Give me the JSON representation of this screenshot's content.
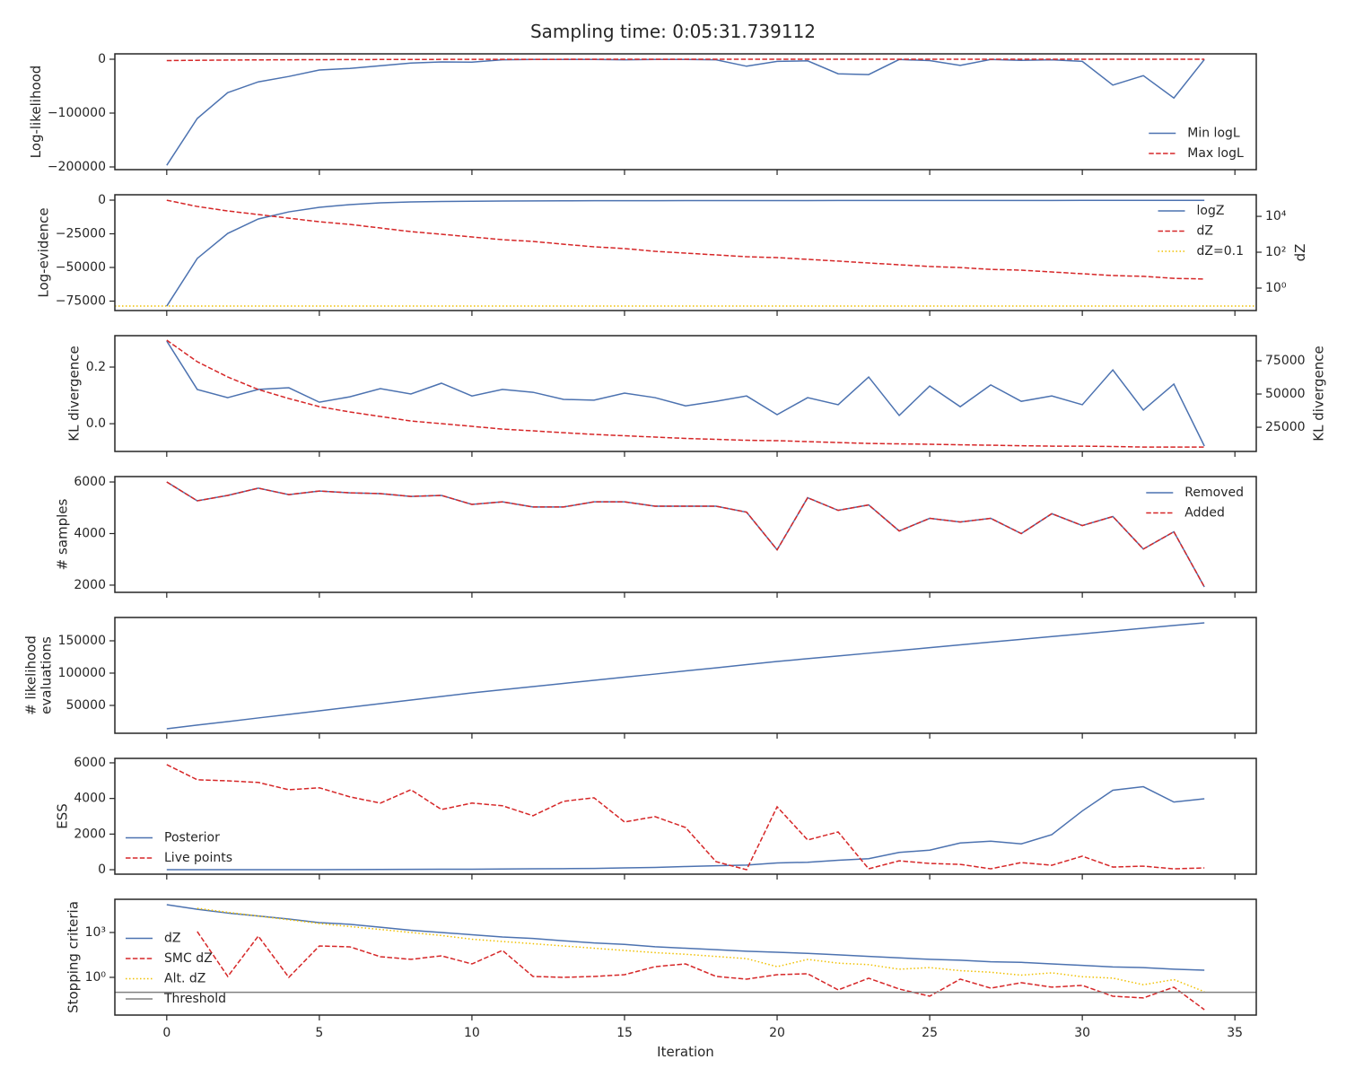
{
  "title": "Sampling time: 0:05:31.739112",
  "chart_data": [
    {
      "type": "line",
      "ylabel": "Log-likelihood",
      "xlim": [
        -1.7,
        35.7
      ],
      "xticks": [
        0,
        5,
        10,
        15,
        20,
        25,
        30,
        35
      ],
      "x": [
        0,
        1,
        2,
        3,
        4,
        5,
        6,
        7,
        8,
        9,
        10,
        11,
        12,
        13,
        14,
        15,
        16,
        17,
        18,
        19,
        20,
        21,
        22,
        23,
        24,
        25,
        26,
        27,
        28,
        29,
        30,
        31,
        32,
        33,
        34
      ],
      "ylim": [
        -205000,
        10000
      ],
      "yticks": [
        {
          "value": -200000,
          "label": "−200000"
        },
        {
          "value": -100000,
          "label": "−100000"
        },
        0
      ],
      "legend": "lower right",
      "series": [
        {
          "name": "Min logL",
          "color": "#4c72b0",
          "style": "solid",
          "values": [
            -197000,
            -110000,
            -62000,
            -42000,
            -32000,
            -20000,
            -17000,
            -12000,
            -7000,
            -5000,
            -5500,
            -1000,
            -500,
            -500,
            -500,
            -1000,
            -500,
            -500,
            -1000,
            -13000,
            -4000,
            -3000,
            -27000,
            -28500,
            -500,
            -2500,
            -11500,
            -500,
            -2000,
            -1000,
            -4000,
            -48000,
            -30500,
            -72000,
            -500
          ]
        },
        {
          "name": "Max logL",
          "color": "#d62728",
          "style": "dashed",
          "values": [
            -2500,
            -2000,
            -1500,
            -1200,
            -1000,
            -800,
            -600,
            -500,
            -400,
            -300,
            -300,
            -200,
            -200,
            -100,
            -100,
            -100,
            -100,
            -100,
            -100,
            -100,
            -100,
            -100,
            -100,
            -100,
            0,
            0,
            0,
            0,
            0,
            0,
            0,
            0,
            0,
            0,
            0
          ]
        }
      ]
    },
    {
      "type": "line",
      "ylabel": "Log-evidence",
      "y2label": "dZ",
      "xlim": [
        -1.7,
        35.7
      ],
      "xticks": [
        0,
        5,
        10,
        15,
        20,
        25,
        30,
        35
      ],
      "x": [
        0,
        1,
        2,
        3,
        4,
        5,
        6,
        7,
        8,
        9,
        10,
        11,
        12,
        13,
        14,
        15,
        16,
        17,
        18,
        19,
        20,
        21,
        22,
        23,
        24,
        25,
        26,
        27,
        28,
        29,
        30,
        31,
        32,
        33,
        34
      ],
      "ylim": [
        -82000,
        4000
      ],
      "yticks": [
        {
          "value": -75000,
          "label": "−75000"
        },
        {
          "value": -50000,
          "label": "−50000"
        },
        {
          "value": -25000,
          "label": "−25000"
        },
        0
      ],
      "y2scale": "log",
      "y2lim": [
        0.056,
        160000
      ],
      "y2ticks": [
        {
          "value": 1,
          "label": "10⁰"
        },
        {
          "value": 100,
          "label": "10²"
        },
        {
          "value": 10000,
          "label": "10⁴"
        }
      ],
      "legend": "upper right",
      "series": [
        {
          "name": "logZ",
          "color": "#4c72b0",
          "style": "solid",
          "values": [
            -78700,
            -43300,
            -24700,
            -14000,
            -8700,
            -5300,
            -3300,
            -2000,
            -1300,
            -1000,
            -800,
            -700,
            -600,
            -500,
            -450,
            -400,
            -380,
            -360,
            -340,
            -320,
            -300,
            -290,
            -280,
            -270,
            -260,
            -250,
            -240,
            -230,
            -220,
            -215,
            -210,
            -205,
            -200,
            -195,
            -190
          ]
        },
        {
          "name": "dZ",
          "color": "#d62728",
          "style": "dashed",
          "axis": "y2",
          "values": [
            79400,
            35500,
            20000,
            12600,
            7900,
            5000,
            3550,
            2240,
            1410,
            1000,
            710,
            500,
            400,
            280,
            200,
            160,
            112,
            89,
            71,
            56,
            50,
            40,
            32,
            25,
            20,
            16,
            14,
            11,
            10,
            7.9,
            6.3,
            5.0,
            4.5,
            3.5,
            3.2
          ]
        },
        {
          "name": "dZ=0.1",
          "color": "#f0c000",
          "style": "dotted",
          "axis": "y2",
          "hline": 0.1
        }
      ]
    },
    {
      "type": "line",
      "ylabel": "KL divergence",
      "y2label": "KL divergence",
      "xlim": [
        -1.7,
        35.7
      ],
      "xticks": [
        0,
        5,
        10,
        15,
        20,
        25,
        30,
        35
      ],
      "x": [
        0,
        1,
        2,
        3,
        4,
        5,
        6,
        7,
        8,
        9,
        10,
        11,
        12,
        13,
        14,
        15,
        16,
        17,
        18,
        19,
        20,
        21,
        22,
        23,
        24,
        25,
        26,
        27,
        28,
        29,
        30,
        31,
        32,
        33,
        34
      ],
      "ylim": [
        -0.098,
        0.311
      ],
      "yticks": [
        {
          "value": 0,
          "label": "0.0"
        },
        0.2
      ],
      "y2lim": [
        6800,
        93900
      ],
      "y2ticks": [
        25000,
        50000,
        75000
      ],
      "series": [
        {
          "color": "#4c72b0",
          "style": "solid",
          "values": [
            0.292,
            0.121,
            0.092,
            0.121,
            0.127,
            0.076,
            0.095,
            0.124,
            0.105,
            0.143,
            0.098,
            0.121,
            0.111,
            0.086,
            0.083,
            0.108,
            0.092,
            0.063,
            0.079,
            0.098,
            0.032,
            0.092,
            0.067,
            0.165,
            0.029,
            0.133,
            0.06,
            0.137,
            0.079,
            0.098,
            0.067,
            0.19,
            0.048,
            0.14,
            -0.079
          ]
        },
        {
          "color": "#d62728",
          "style": "dashed",
          "axis": "y2",
          "values": [
            90500,
            74300,
            62800,
            53400,
            46600,
            40500,
            36500,
            33100,
            29700,
            27700,
            25700,
            23600,
            22300,
            20900,
            19600,
            18600,
            17600,
            16600,
            15900,
            15200,
            14900,
            14200,
            13500,
            12800,
            12500,
            12200,
            11800,
            11500,
            11100,
            10800,
            10800,
            10500,
            10100,
            10100,
            10100
          ]
        }
      ]
    },
    {
      "type": "line",
      "ylabel": "# samples",
      "xlim": [
        -1.7,
        35.7
      ],
      "xticks": [
        0,
        5,
        10,
        15,
        20,
        25,
        30,
        35
      ],
      "x": [
        0,
        1,
        2,
        3,
        4,
        5,
        6,
        7,
        8,
        9,
        10,
        11,
        12,
        13,
        14,
        15,
        16,
        17,
        18,
        19,
        20,
        21,
        22,
        23,
        24,
        25,
        26,
        27,
        28,
        29,
        30,
        31,
        32,
        33,
        34
      ],
      "ylim": [
        1720,
        6210
      ],
      "yticks": [
        2000,
        4000,
        6000
      ],
      "legend": "upper right",
      "series": [
        {
          "name": "Removed",
          "color": "#4c72b0",
          "style": "solid",
          "values": [
            6000,
            5270,
            5480,
            5760,
            5510,
            5650,
            5580,
            5550,
            5440,
            5480,
            5130,
            5230,
            5030,
            5030,
            5230,
            5230,
            5060,
            5060,
            5060,
            4830,
            3370,
            5390,
            4900,
            5110,
            4100,
            4590,
            4450,
            4590,
            4000,
            4770,
            4310,
            4660,
            3400,
            4070,
            1930
          ]
        },
        {
          "name": "Added",
          "color": "#d62728",
          "style": "dashed",
          "values": [
            6000,
            5270,
            5480,
            5760,
            5510,
            5650,
            5580,
            5550,
            5440,
            5480,
            5130,
            5230,
            5030,
            5030,
            5230,
            5230,
            5060,
            5060,
            5060,
            4830,
            3370,
            5390,
            4900,
            5110,
            4100,
            4590,
            4450,
            4590,
            4000,
            4770,
            4310,
            4660,
            3400,
            4070,
            1930
          ]
        }
      ]
    },
    {
      "type": "line",
      "ylabel": [
        "# likelihood",
        "evaluations"
      ],
      "xlim": [
        -1.7,
        35.7
      ],
      "xticks": [
        0,
        5,
        10,
        15,
        20,
        25,
        30,
        35
      ],
      "x": [
        0,
        1,
        2,
        3,
        4,
        5,
        6,
        7,
        8,
        9,
        10,
        11,
        12,
        13,
        14,
        15,
        16,
        17,
        18,
        19,
        20,
        21,
        22,
        23,
        24,
        25,
        26,
        27,
        28,
        29,
        30,
        31,
        32,
        33,
        34
      ],
      "ylim": [
        6900,
        186100
      ],
      "yticks": [
        50000,
        100000,
        150000
      ],
      "series": [
        {
          "color": "#4c72b0",
          "style": "solid",
          "values": [
            13900,
            19500,
            25000,
            30600,
            36100,
            41600,
            47200,
            52700,
            58300,
            63800,
            69400,
            74300,
            79100,
            84000,
            88800,
            93700,
            98500,
            103400,
            108200,
            113100,
            118000,
            122300,
            126600,
            130800,
            135100,
            139400,
            143700,
            148000,
            152300,
            156600,
            160800,
            165100,
            169400,
            173700,
            177800
          ]
        }
      ]
    },
    {
      "type": "line",
      "ylabel": "ESS",
      "xlim": [
        -1.7,
        35.7
      ],
      "xticks": [
        0,
        5,
        10,
        15,
        20,
        25,
        30,
        35
      ],
      "x": [
        0,
        1,
        2,
        3,
        4,
        5,
        6,
        7,
        8,
        9,
        10,
        11,
        12,
        13,
        14,
        15,
        16,
        17,
        18,
        19,
        20,
        21,
        22,
        23,
        24,
        25,
        26,
        27,
        28,
        29,
        30,
        31,
        32,
        33,
        34
      ],
      "ylim": [
        -250,
        6250
      ],
      "yticks": [
        0,
        2000,
        4000,
        6000
      ],
      "legend": "lower left",
      "series": [
        {
          "name": "Posterior",
          "color": "#4c72b0",
          "style": "solid",
          "values": [
            0,
            0,
            0,
            0,
            0,
            5,
            10,
            15,
            20,
            25,
            30,
            40,
            50,
            60,
            70,
            100,
            130,
            180,
            220,
            260,
            380,
            420,
            530,
            620,
            970,
            1100,
            1500,
            1600,
            1450,
            1970,
            3300,
            4460,
            4660,
            3800,
            3980
          ]
        },
        {
          "name": "Live points",
          "color": "#d62728",
          "style": "dashed",
          "values": [
            5900,
            5050,
            4990,
            4900,
            4490,
            4600,
            4090,
            3740,
            4490,
            3380,
            3740,
            3590,
            3030,
            3840,
            4040,
            2680,
            2980,
            2370,
            450,
            0,
            3530,
            1670,
            2120,
            50,
            500,
            350,
            300,
            50,
            400,
            250,
            760,
            150,
            200,
            50,
            100
          ]
        }
      ]
    },
    {
      "type": "line",
      "ylabel": "Stopping criteria",
      "xlabel": "Iteration",
      "xlim": [
        -1.7,
        35.7
      ],
      "xticks": [
        0,
        5,
        10,
        15,
        20,
        25,
        30,
        35
      ],
      "x": [
        0,
        1,
        2,
        3,
        4,
        5,
        6,
        7,
        8,
        9,
        10,
        11,
        12,
        13,
        14,
        15,
        16,
        17,
        18,
        19,
        20,
        21,
        22,
        23,
        24,
        25,
        26,
        27,
        28,
        29,
        30,
        31,
        32,
        33,
        34
      ],
      "yscale": "log",
      "ylim": [
        0.003,
        166000
      ],
      "yticks": [
        {
          "value": 1,
          "label": "10⁰"
        },
        {
          "value": 1000,
          "label": "10³"
        }
      ],
      "legend": "lower left",
      "series": [
        {
          "name": "dZ",
          "color": "#4c72b0",
          "style": "solid",
          "values": [
            72000,
            35500,
            20000,
            12600,
            7900,
            4600,
            3550,
            2240,
            1410,
            1000,
            710,
            500,
            400,
            280,
            200,
            160,
            112,
            89,
            71,
            56,
            48,
            40,
            32,
            25,
            20,
            16,
            14,
            11,
            10,
            7.9,
            6.3,
            5.0,
            4.5,
            3.5,
            3.0
          ]
        },
        {
          "name": "SMC dZ",
          "color": "#d62728",
          "style": "dashed",
          "values": [
            null,
            1150,
            1.15,
            575,
            1.0,
            126,
            110,
            24,
            16,
            27.5,
            7.9,
            63,
            1.15,
            1.0,
            1.15,
            1.5,
            5.2,
            7.9,
            1.15,
            0.76,
            1.5,
            1.74,
            0.145,
            0.87,
            0.166,
            0.055,
            0.76,
            0.19,
            0.44,
            0.22,
            0.29,
            0.055,
            0.042,
            0.22,
            0.0069
          ]
        },
        {
          "name": "Alt. dZ",
          "color": "#f0c000",
          "style": "dotted",
          "values": [
            null,
            41700,
            22400,
            12600,
            7100,
            4000,
            2500,
            1600,
            1000,
            630,
            355,
            250,
            178,
            126,
            89,
            63,
            45,
            35,
            25,
            17.8,
            5.2,
            15.8,
            8.9,
            7.1,
            3.5,
            4.5,
            2.8,
            2.2,
            1.4,
            2.0,
            1.1,
            0.89,
            0.32,
            0.71,
            0.11
          ]
        },
        {
          "name": "Threshold",
          "color": "#808080",
          "style": "solid",
          "hline": 0.1
        }
      ]
    }
  ]
}
